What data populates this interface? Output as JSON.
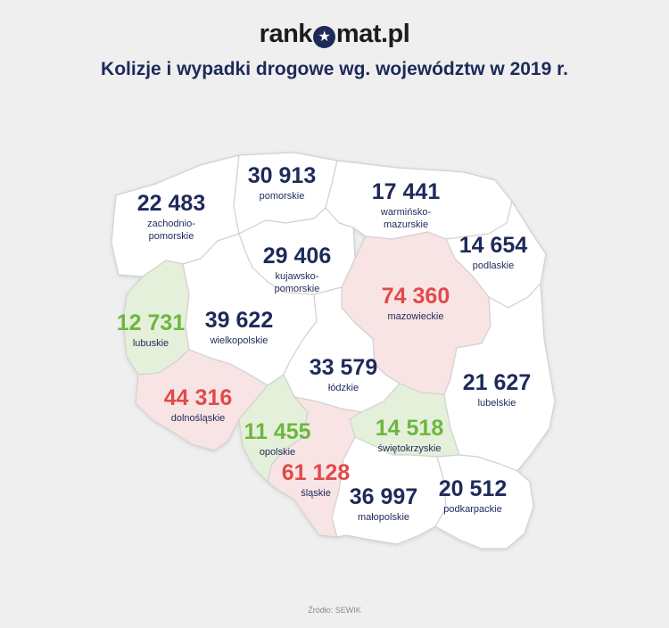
{
  "brand": {
    "text_before": "rank",
    "text_after": "mat.pl"
  },
  "title": "Kolizje i wypadki drogowe wg. województw w 2019 r.",
  "colors": {
    "navy": "#1e2a5a",
    "high": "#e04a4a",
    "low": "#6fb63f",
    "high_fill": "#f8e4e4",
    "low_fill": "#e4f0d9",
    "default_fill": "#ffffff"
  },
  "regions": [
    {
      "name": "zachodnio-\npomorskie",
      "value": "22 483",
      "color": "navy"
    },
    {
      "name": "pomorskie",
      "value": "30 913",
      "color": "navy"
    },
    {
      "name": "warmińsko-\nmazurskie",
      "value": "17 441",
      "color": "navy"
    },
    {
      "name": "podlaskie",
      "value": "14 654",
      "color": "navy"
    },
    {
      "name": "kujawsko-\npomorskie",
      "value": "29 406",
      "color": "navy"
    },
    {
      "name": "mazowieckie",
      "value": "74 360",
      "color": "red"
    },
    {
      "name": "lubuskie",
      "value": "12 731",
      "color": "green"
    },
    {
      "name": "wielkopolskie",
      "value": "39 622",
      "color": "navy"
    },
    {
      "name": "łódzkie",
      "value": "33 579",
      "color": "navy"
    },
    {
      "name": "lubelskie",
      "value": "21 627",
      "color": "navy"
    },
    {
      "name": "dolnośląskie",
      "value": "44 316",
      "color": "red"
    },
    {
      "name": "opolskie",
      "value": "11 455",
      "color": "green"
    },
    {
      "name": "świętokrzyskie",
      "value": "14 518",
      "color": "green"
    },
    {
      "name": "śląskie",
      "value": "61 128",
      "color": "red"
    },
    {
      "name": "małopolskie",
      "value": "36 997",
      "color": "navy"
    },
    {
      "name": "podkarpackie",
      "value": "20 512",
      "color": "navy"
    }
  ],
  "source": "Źródło: SEWIK"
}
